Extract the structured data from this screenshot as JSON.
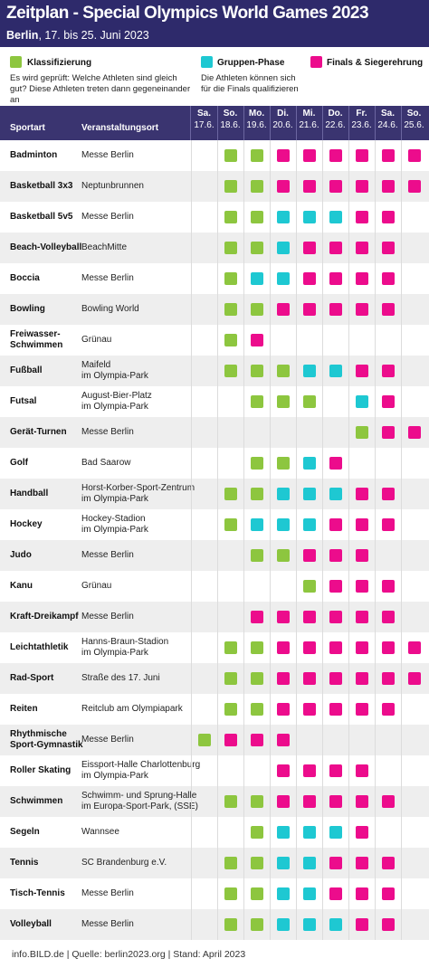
{
  "title": "Zeitplan - Special Olympics World Games 2023",
  "subtitle_city": "Berlin",
  "subtitle_dates": ", 17. bis 25. Juni 2023",
  "colors": {
    "header": "#2e2a6b",
    "klassifizierung": "#8dc63f",
    "gruppen": "#1ec8d2",
    "finals": "#ec0c8c",
    "row_alt": "#eeeeee",
    "row_plain": "#ffffff"
  },
  "legend": {
    "k_label": "Klassifizierung",
    "k_desc": "Es wird geprüft: Welche Athleten sind gleich gut? Diese Athleten treten dann gegeneinander an",
    "g_label": "Gruppen-Phase",
    "g_desc": "Die Athleten können sich für die Finals qualifizieren",
    "f_label": "Finals & Siegerehrung"
  },
  "table_header": {
    "sport": "Sportart",
    "venue": "Veranstaltungsort"
  },
  "days": [
    {
      "d": "Sa.",
      "date": "17.6."
    },
    {
      "d": "So.",
      "date": "18.6."
    },
    {
      "d": "Mo.",
      "date": "19.6."
    },
    {
      "d": "Di.",
      "date": "20.6."
    },
    {
      "d": "Mi.",
      "date": "21.6."
    },
    {
      "d": "Do.",
      "date": "22.6."
    },
    {
      "d": "Fr.",
      "date": "23.6."
    },
    {
      "d": "Sa.",
      "date": "24.6."
    },
    {
      "d": "So.",
      "date": "25.6."
    }
  ],
  "sports": [
    {
      "sport": "Badminton",
      "venue": "Messe Berlin",
      "cells": [
        "",
        "K",
        "K",
        "F",
        "F",
        "F",
        "F",
        "F",
        "F"
      ]
    },
    {
      "sport": "Basketball 3x3",
      "venue": "Neptunbrunnen",
      "cells": [
        "",
        "K",
        "K",
        "F",
        "F",
        "F",
        "F",
        "F",
        "F"
      ]
    },
    {
      "sport": "Basketball 5v5",
      "venue": "Messe Berlin",
      "cells": [
        "",
        "K",
        "K",
        "G",
        "G",
        "G",
        "F",
        "F",
        ""
      ]
    },
    {
      "sport": "Beach-Volleyball",
      "venue": "BeachMitte",
      "cells": [
        "",
        "K",
        "K",
        "G",
        "F",
        "F",
        "F",
        "F",
        ""
      ]
    },
    {
      "sport": "Boccia",
      "venue": "Messe Berlin",
      "cells": [
        "",
        "K",
        "G",
        "G",
        "F",
        "F",
        "F",
        "F",
        ""
      ]
    },
    {
      "sport": "Bowling",
      "venue": "Bowling World",
      "cells": [
        "",
        "K",
        "K",
        "F",
        "F",
        "F",
        "F",
        "F",
        ""
      ]
    },
    {
      "sport": "Freiwasser-\nSchwimmen",
      "venue": "Grünau",
      "cells": [
        "",
        "K",
        "F",
        "",
        "",
        "",
        "",
        "",
        ""
      ]
    },
    {
      "sport": "Fußball",
      "venue": "Maifeld\nim Olympia-Park",
      "cells": [
        "",
        "K",
        "K",
        "K",
        "G",
        "G",
        "F",
        "F",
        ""
      ]
    },
    {
      "sport": "Futsal",
      "venue": "August-Bier-Platz\nim Olympia-Park",
      "cells": [
        "",
        "",
        "K",
        "K",
        "K",
        "",
        "G",
        "F",
        ""
      ]
    },
    {
      "sport": "Gerät-Turnen",
      "venue": "Messe Berlin",
      "cells": [
        "",
        "",
        "",
        "",
        "",
        "",
        "K",
        "F",
        "F"
      ]
    },
    {
      "sport": "Golf",
      "venue": "Bad Saarow",
      "cells": [
        "",
        "",
        "K",
        "K",
        "G",
        "F",
        "",
        "",
        ""
      ]
    },
    {
      "sport": "Handball",
      "venue": "Horst-Korber-Sport-Zentrum\nim Olympia-Park",
      "cells": [
        "",
        "K",
        "K",
        "G",
        "G",
        "G",
        "F",
        "F",
        ""
      ]
    },
    {
      "sport": "Hockey",
      "venue": "Hockey-Stadion\nim Olympia-Park",
      "cells": [
        "",
        "K",
        "G",
        "G",
        "G",
        "F",
        "F",
        "F",
        ""
      ]
    },
    {
      "sport": "Judo",
      "venue": "Messe Berlin",
      "cells": [
        "",
        "",
        "K",
        "K",
        "F",
        "F",
        "F",
        "",
        ""
      ]
    },
    {
      "sport": "Kanu",
      "venue": "Grünau",
      "cells": [
        "",
        "",
        "",
        "",
        "K",
        "F",
        "F",
        "F",
        ""
      ]
    },
    {
      "sport": "Kraft-Dreikampf",
      "venue": "Messe Berlin",
      "cells": [
        "",
        "",
        "F",
        "F",
        "F",
        "F",
        "F",
        "F",
        ""
      ]
    },
    {
      "sport": "Leichtathletik",
      "venue": "Hanns-Braun-Stadion\nim Olympia-Park",
      "cells": [
        "",
        "K",
        "K",
        "F",
        "F",
        "F",
        "F",
        "F",
        "F"
      ]
    },
    {
      "sport": "Rad-Sport",
      "venue": "Straße des 17. Juni",
      "cells": [
        "",
        "K",
        "K",
        "F",
        "F",
        "F",
        "F",
        "F",
        "F"
      ]
    },
    {
      "sport": "Reiten",
      "venue": "Reitclub am Olympiapark",
      "cells": [
        "",
        "K",
        "K",
        "F",
        "F",
        "F",
        "F",
        "F",
        ""
      ]
    },
    {
      "sport": "Rhythmische\nSport-Gymnastik",
      "venue": "Messe Berlin",
      "cells": [
        "K",
        "F",
        "F",
        "F",
        "",
        "",
        "",
        "",
        ""
      ]
    },
    {
      "sport": "Roller Skating",
      "venue": "Eissport-Halle Charlottenburg\nim Olympia-Park",
      "cells": [
        "",
        "",
        "",
        "F",
        "F",
        "F",
        "F",
        "",
        ""
      ]
    },
    {
      "sport": "Schwimmen",
      "venue": "Schwimm- und Sprung-Halle\nim Europa-Sport-Park, (SSE)",
      "cells": [
        "",
        "K",
        "K",
        "F",
        "F",
        "F",
        "F",
        "F",
        ""
      ]
    },
    {
      "sport": "Segeln",
      "venue": "Wannsee",
      "cells": [
        "",
        "",
        "K",
        "G",
        "G",
        "G",
        "F",
        "",
        ""
      ]
    },
    {
      "sport": "Tennis",
      "venue": "SC Brandenburg e.V.",
      "cells": [
        "",
        "K",
        "K",
        "G",
        "G",
        "F",
        "F",
        "F",
        ""
      ]
    },
    {
      "sport": "Tisch-Tennis",
      "venue": "Messe Berlin",
      "cells": [
        "",
        "K",
        "K",
        "G",
        "G",
        "F",
        "F",
        "F",
        ""
      ]
    },
    {
      "sport": "Volleyball",
      "venue": "Messe Berlin",
      "cells": [
        "",
        "K",
        "K",
        "G",
        "G",
        "G",
        "F",
        "F",
        ""
      ]
    }
  ],
  "footer": "info.BILD.de | Quelle: berlin2023.org | Stand: April 2023"
}
